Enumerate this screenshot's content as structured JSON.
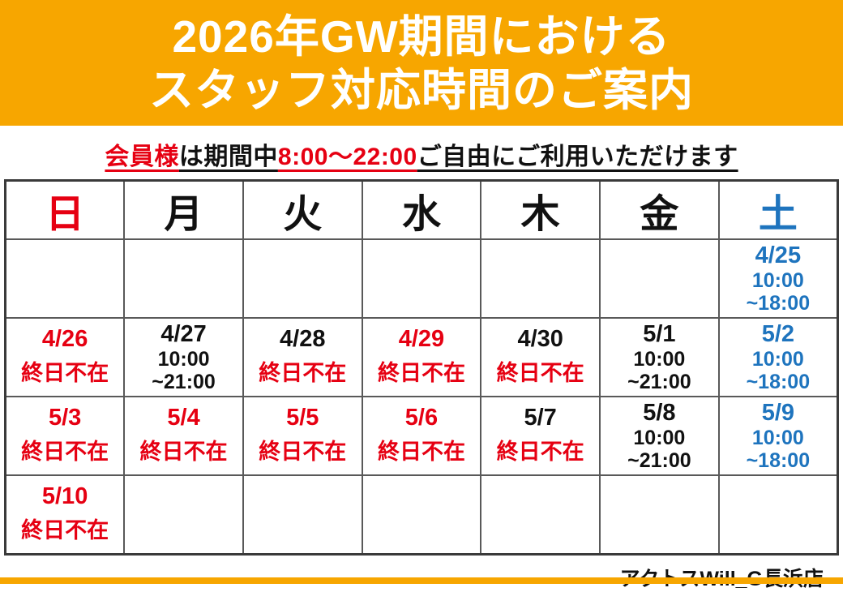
{
  "colors": {
    "orange": "#F7A600",
    "red": "#E60012",
    "blue": "#1E74BE",
    "black": "#111111",
    "border": "#595959"
  },
  "header": {
    "title_line1": "2026年GW期間における",
    "title_line2": "スタッフ対応時間のご案内"
  },
  "subtitle": {
    "segments": [
      {
        "text": "会員様",
        "color": "red"
      },
      {
        "text": "は期間中",
        "color": "black"
      },
      {
        "text": "8:00～22:00",
        "color": "red"
      },
      {
        "text": "ご自由にご利用いただけます",
        "color": "black"
      }
    ]
  },
  "calendar": {
    "day_headers": [
      {
        "label": "日",
        "color": "red"
      },
      {
        "label": "月",
        "color": "black"
      },
      {
        "label": "火",
        "color": "black"
      },
      {
        "label": "水",
        "color": "black"
      },
      {
        "label": "木",
        "color": "black"
      },
      {
        "label": "金",
        "color": "black"
      },
      {
        "label": "土",
        "color": "blue"
      }
    ],
    "weeks": [
      {
        "cells": [
          null,
          null,
          null,
          null,
          null,
          null,
          {
            "date": "4/25",
            "date_color": "blue",
            "times": [
              "10:00",
              "~18:00"
            ],
            "time_color": "blue"
          }
        ]
      },
      {
        "cells": [
          {
            "date": "4/26",
            "date_color": "red",
            "status": "終日不在",
            "status_color": "red"
          },
          {
            "date": "4/27",
            "date_color": "black",
            "times": [
              "10:00",
              "~21:00"
            ],
            "time_color": "black"
          },
          {
            "date": "4/28",
            "date_color": "black",
            "status": "終日不在",
            "status_color": "red"
          },
          {
            "date": "4/29",
            "date_color": "red",
            "status": "終日不在",
            "status_color": "red"
          },
          {
            "date": "4/30",
            "date_color": "black",
            "status": "終日不在",
            "status_color": "red"
          },
          {
            "date": "5/1",
            "date_color": "black",
            "times": [
              "10:00",
              "~21:00"
            ],
            "time_color": "black"
          },
          {
            "date": "5/2",
            "date_color": "blue",
            "times": [
              "10:00",
              "~18:00"
            ],
            "time_color": "blue"
          }
        ]
      },
      {
        "cells": [
          {
            "date": "5/3",
            "date_color": "red",
            "status": "終日不在",
            "status_color": "red"
          },
          {
            "date": "5/4",
            "date_color": "red",
            "status": "終日不在",
            "status_color": "red"
          },
          {
            "date": "5/5",
            "date_color": "red",
            "status": "終日不在",
            "status_color": "red"
          },
          {
            "date": "5/6",
            "date_color": "red",
            "status": "終日不在",
            "status_color": "red"
          },
          {
            "date": "5/7",
            "date_color": "black",
            "status": "終日不在",
            "status_color": "red"
          },
          {
            "date": "5/8",
            "date_color": "black",
            "times": [
              "10:00",
              "~21:00"
            ],
            "time_color": "black"
          },
          {
            "date": "5/9",
            "date_color": "blue",
            "times": [
              "10:00",
              "~18:00"
            ],
            "time_color": "blue"
          }
        ]
      },
      {
        "cells": [
          {
            "date": "5/10",
            "date_color": "red",
            "status": "終日不在",
            "status_color": "red"
          },
          null,
          null,
          null,
          null,
          null,
          null
        ]
      }
    ]
  },
  "footer": {
    "store_name": "アクトスWill_G長浜店"
  }
}
